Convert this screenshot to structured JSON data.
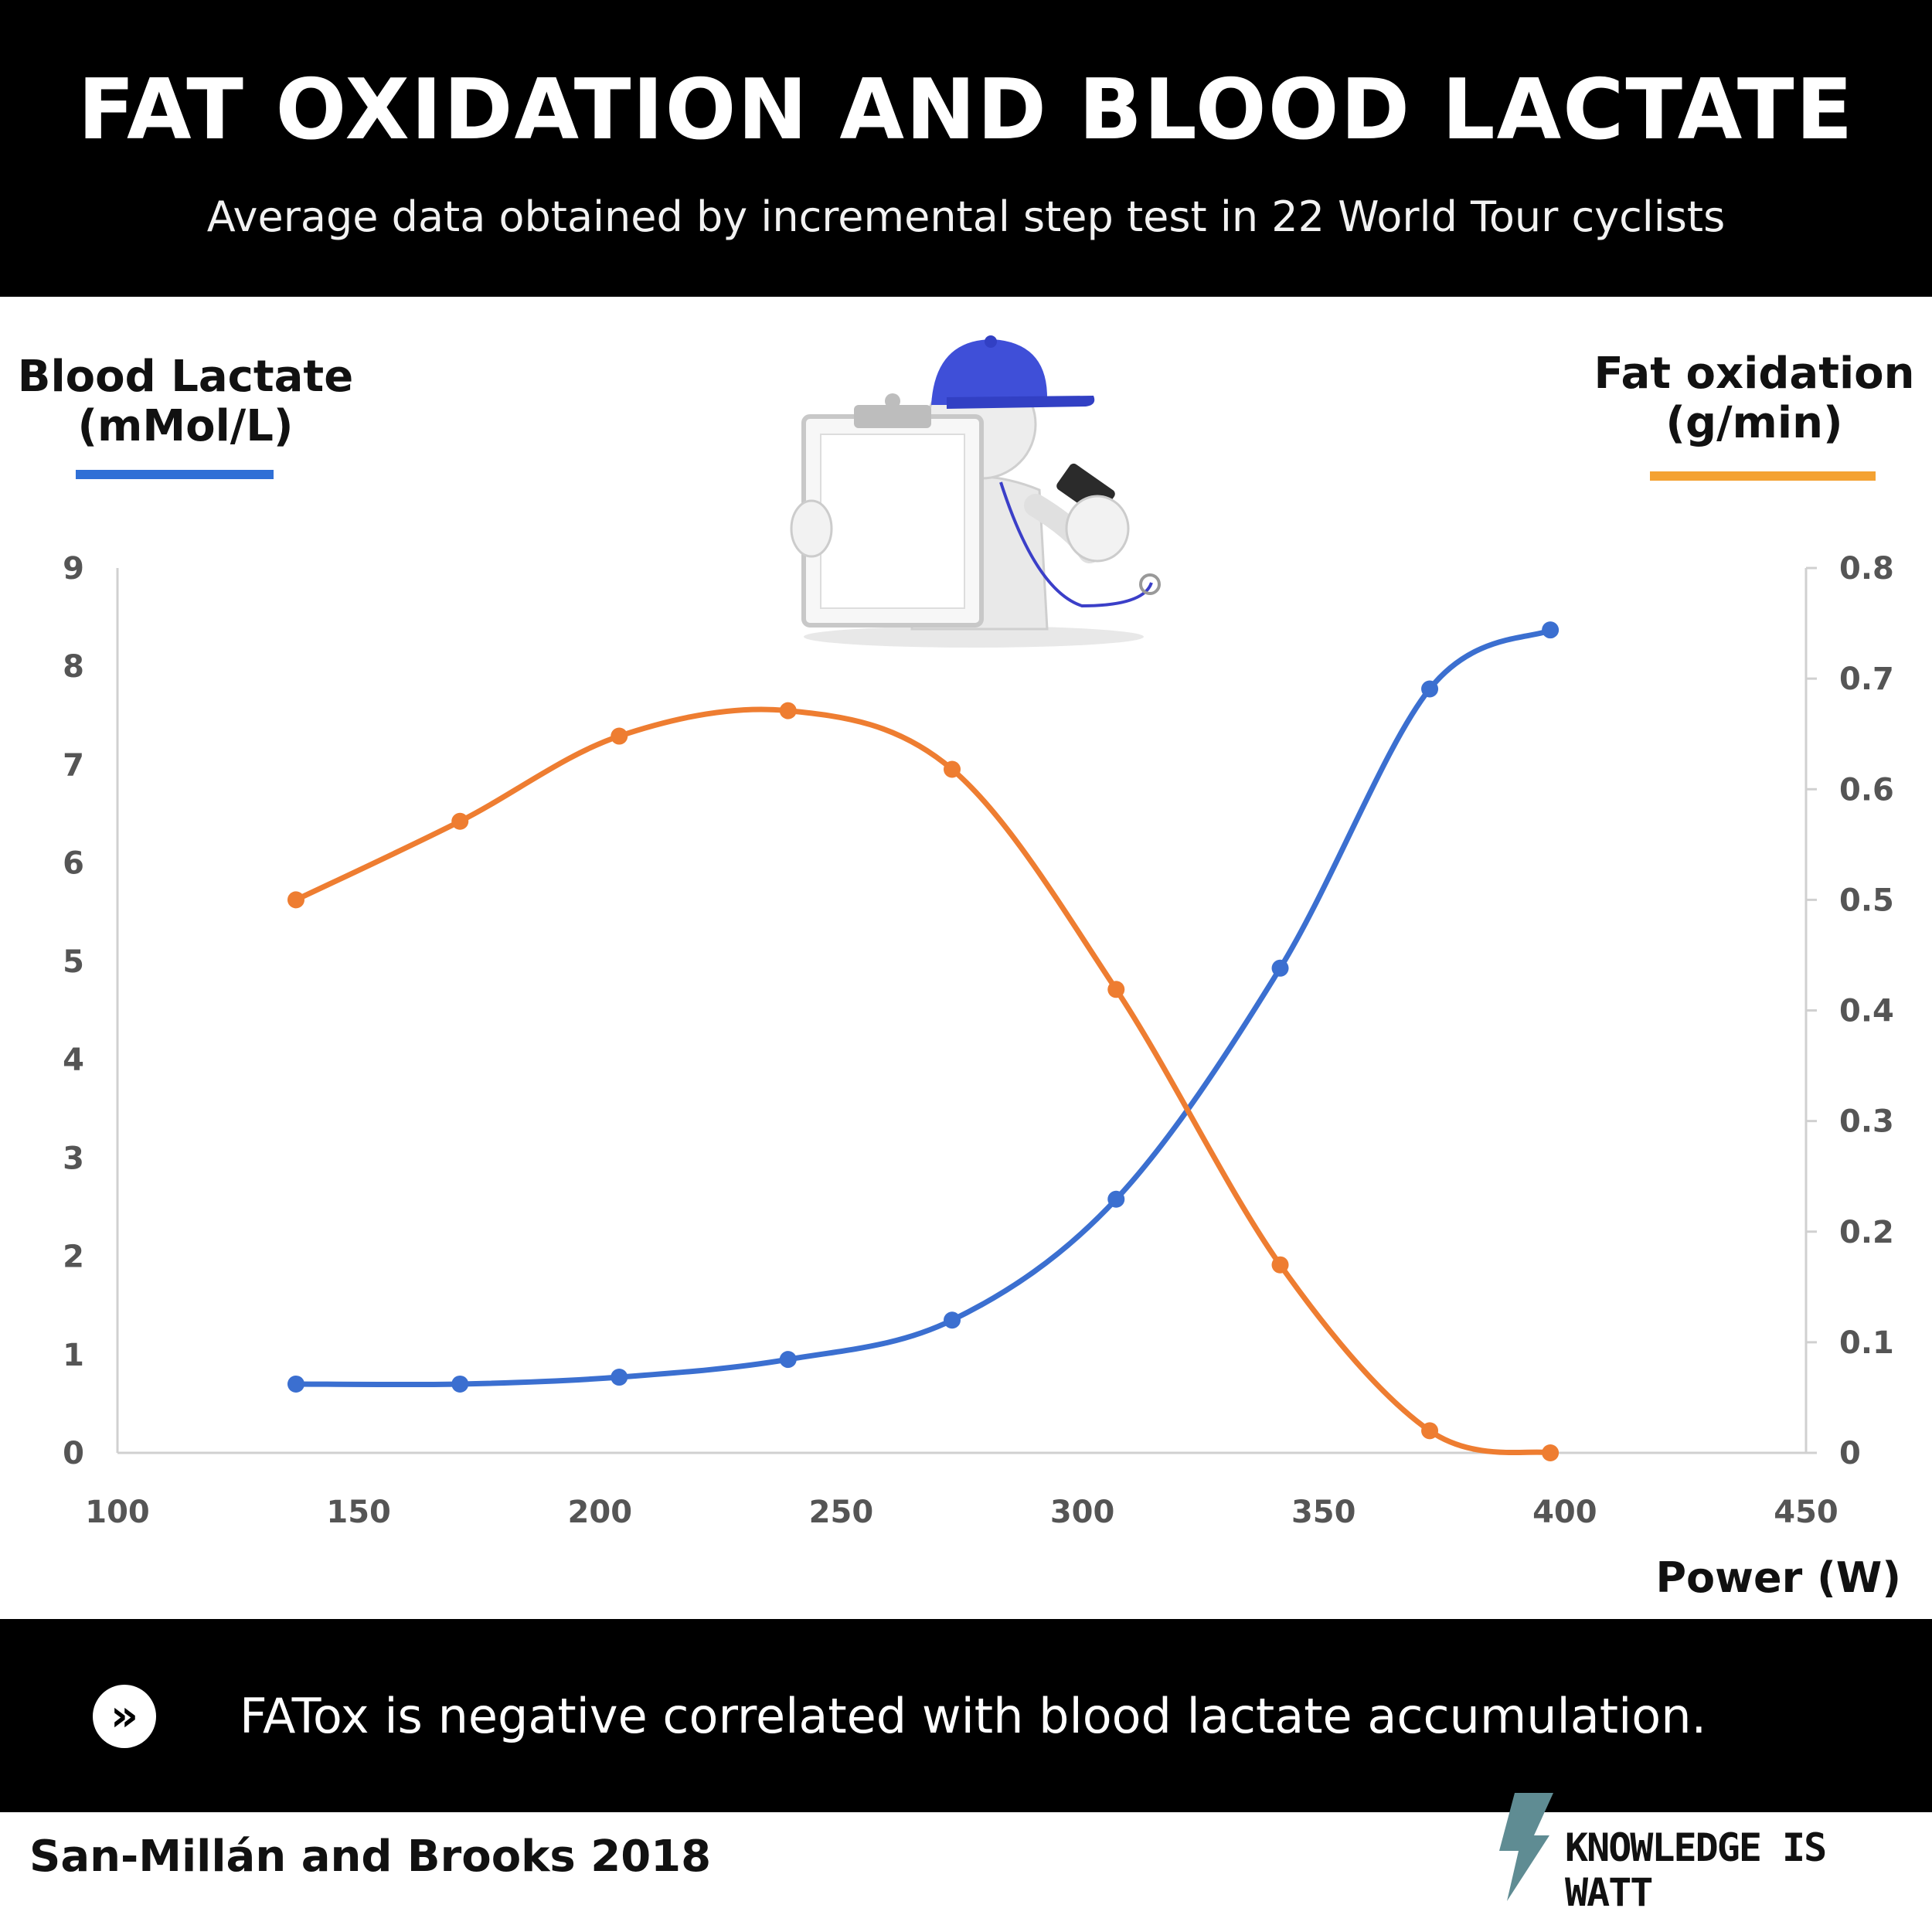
{
  "header": {
    "title": "FAT OXIDATION AND BLOOD LACTATE",
    "subtitle": "Average data obtained by incremental step test in 22 World Tour cyclists"
  },
  "axes": {
    "left_title_line1": "Blood Lactate",
    "left_title_line2": "(mMol/L)",
    "right_title_line1": "Fat oxidation",
    "right_title_line2": "(g/min)",
    "x_title": "Power (W)"
  },
  "chart_data": {
    "type": "line",
    "x_label": "Power (W)",
    "y_left_label": "Blood Lactate (mMol/L)",
    "y_right_label": "Fat oxidation (g/min)",
    "xlim": [
      100,
      450
    ],
    "x_ticks": [
      "100",
      "150",
      "200",
      "250",
      "300",
      "350",
      "400",
      "450"
    ],
    "y_left_lim": [
      0,
      9
    ],
    "y_left_ticks": [
      "0",
      "1",
      "2",
      "3",
      "4",
      "5",
      "6",
      "7",
      "8",
      "9"
    ],
    "y_right_lim": [
      0,
      0.8
    ],
    "y_right_ticks": [
      "0",
      "0.1",
      "0.2",
      "0.3",
      "0.4",
      "0.5",
      "0.6",
      "0.7",
      "0.8"
    ],
    "grid": false,
    "series": [
      {
        "key": "lactate",
        "axis": "left",
        "color": "#3b6fd0",
        "x": [
          137,
          171,
          204,
          239,
          273,
          307,
          341,
          372,
          397
        ],
        "y": [
          0.7,
          0.7,
          0.77,
          0.95,
          1.35,
          2.58,
          4.93,
          7.77,
          8.37
        ]
      },
      {
        "key": "fat_oxidation",
        "axis": "right",
        "color": "#ee7d31",
        "x": [
          137,
          171,
          204,
          239,
          273,
          307,
          341,
          372,
          397
        ],
        "y": [
          0.5,
          0.571,
          0.648,
          0.671,
          0.618,
          0.419,
          0.17,
          0.02,
          0.0
        ]
      }
    ]
  },
  "footer": {
    "note_icon": "chevron-right-double-icon",
    "note": "FATox is negative correlated with blood lactate accumulation.",
    "citation": "San-Millán and Brooks 2018",
    "brand": "KNOWLEDGE IS WATT",
    "brand_icon": "lightning-bolt-icon",
    "brand_color": "#5f8c93"
  },
  "figure": {
    "name": "coach-figure-with-clipboard-and-whistle"
  }
}
